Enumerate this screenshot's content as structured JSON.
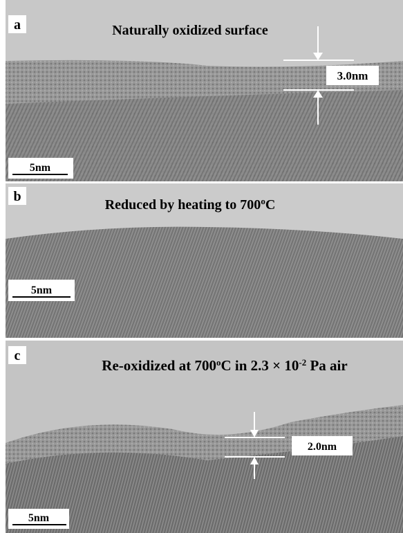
{
  "panels": [
    {
      "label": "a",
      "title_parts": [
        "Naturally oxidized  surface"
      ],
      "scale_bar": "5nm",
      "thickness": "3.0nm"
    },
    {
      "label": "b",
      "title_parts": [
        "Reduced by heating to 700",
        "o",
        "C"
      ],
      "scale_bar": "5nm"
    },
    {
      "label": "c",
      "title_parts": [
        "Re-oxidized at 700",
        "o",
        "C in 2.3 × 10",
        "-2",
        " Pa air"
      ],
      "scale_bar": "5nm",
      "thickness": "2.0nm"
    }
  ]
}
